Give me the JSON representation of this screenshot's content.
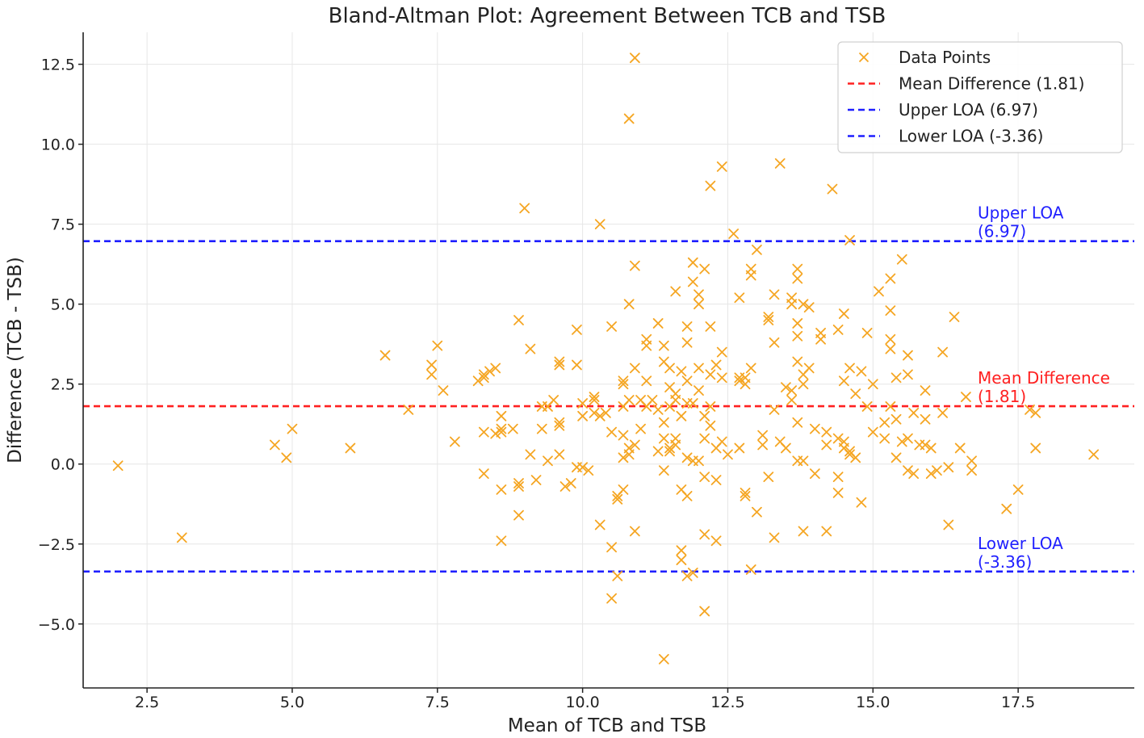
{
  "chart_data": {
    "type": "scatter",
    "title": "Bland-Altman Plot: Agreement Between TCB and TSB",
    "xlabel": "Mean of TCB and TSB",
    "ylabel": "Difference (TCB - TSB)",
    "xlim": [
      1.4,
      19.5
    ],
    "ylim": [
      -7.0,
      13.5
    ],
    "xticks": [
      2.5,
      5.0,
      7.5,
      10.0,
      12.5,
      15.0,
      17.5
    ],
    "xtick_labels": [
      "2.5",
      "5.0",
      "7.5",
      "10.0",
      "12.5",
      "15.0",
      "17.5"
    ],
    "yticks": [
      -5.0,
      -2.5,
      0.0,
      2.5,
      5.0,
      7.5,
      10.0,
      12.5
    ],
    "ytick_labels": [
      "−5.0",
      "−2.5",
      "0.0",
      "2.5",
      "5.0",
      "7.5",
      "10.0",
      "12.5"
    ],
    "grid": true,
    "legend_position": "top-right",
    "colors": {
      "points": "#f5a623",
      "mean": "#ff2020",
      "loa": "#1f1fff",
      "axis": "#222222",
      "grid": "#e6e6e6"
    },
    "series": [
      {
        "name": "Data Points",
        "marker": "x",
        "points": [
          [
            2.0,
            -0.05
          ],
          [
            3.1,
            -2.3
          ],
          [
            4.7,
            0.6
          ],
          [
            4.9,
            0.2
          ],
          [
            5.0,
            1.1
          ],
          [
            6.0,
            0.5
          ],
          [
            6.6,
            3.4
          ],
          [
            7.0,
            1.7
          ],
          [
            7.4,
            2.8
          ],
          [
            7.4,
            3.1
          ],
          [
            7.5,
            3.7
          ],
          [
            7.6,
            2.3
          ],
          [
            7.8,
            0.7
          ],
          [
            8.2,
            2.6
          ],
          [
            8.3,
            2.8
          ],
          [
            8.3,
            2.7
          ],
          [
            8.4,
            2.9
          ],
          [
            8.5,
            3.0
          ],
          [
            8.3,
            1.0
          ],
          [
            8.3,
            -0.3
          ],
          [
            8.5,
            0.95
          ],
          [
            8.6,
            1.0
          ],
          [
            8.6,
            1.1
          ],
          [
            8.6,
            1.5
          ],
          [
            8.6,
            -0.8
          ],
          [
            8.6,
            -2.4
          ],
          [
            8.8,
            1.1
          ],
          [
            8.9,
            4.5
          ],
          [
            8.9,
            -0.7
          ],
          [
            8.9,
            -0.6
          ],
          [
            8.9,
            -1.6
          ],
          [
            9.0,
            8.0
          ],
          [
            9.1,
            3.6
          ],
          [
            9.1,
            0.3
          ],
          [
            9.2,
            -0.5
          ],
          [
            9.3,
            1.1
          ],
          [
            9.3,
            1.8
          ],
          [
            9.4,
            0.1
          ],
          [
            9.4,
            1.8
          ],
          [
            9.5,
            2.0
          ],
          [
            9.6,
            3.1
          ],
          [
            9.6,
            3.2
          ],
          [
            9.6,
            1.2
          ],
          [
            9.6,
            1.3
          ],
          [
            9.6,
            0.3
          ],
          [
            9.7,
            -0.7
          ],
          [
            9.8,
            -0.6
          ],
          [
            9.9,
            4.2
          ],
          [
            9.9,
            3.1
          ],
          [
            9.9,
            -0.1
          ],
          [
            10.0,
            1.5
          ],
          [
            10.0,
            1.9
          ],
          [
            10.0,
            -0.1
          ],
          [
            10.1,
            -0.2
          ],
          [
            10.2,
            2.0
          ],
          [
            10.2,
            2.1
          ],
          [
            10.2,
            1.6
          ],
          [
            10.3,
            7.5
          ],
          [
            10.3,
            1.5
          ],
          [
            10.3,
            -1.9
          ],
          [
            10.4,
            1.6
          ],
          [
            10.5,
            4.3
          ],
          [
            10.5,
            1.0
          ],
          [
            10.5,
            -2.6
          ],
          [
            10.5,
            -4.2
          ],
          [
            10.6,
            -1.1
          ],
          [
            10.6,
            -1.0
          ],
          [
            10.6,
            -3.5
          ],
          [
            10.7,
            2.6
          ],
          [
            10.7,
            2.5
          ],
          [
            10.7,
            1.8
          ],
          [
            10.7,
            0.9
          ],
          [
            10.7,
            0.2
          ],
          [
            10.7,
            -0.8
          ],
          [
            10.8,
            10.8
          ],
          [
            10.8,
            2.0
          ],
          [
            10.8,
            0.5
          ],
          [
            10.8,
            5.0
          ],
          [
            10.8,
            0.3
          ],
          [
            10.9,
            12.7
          ],
          [
            10.9,
            6.2
          ],
          [
            10.9,
            3.0
          ],
          [
            10.9,
            0.6
          ],
          [
            10.9,
            -2.1
          ],
          [
            11.0,
            2.0
          ],
          [
            11.0,
            1.1
          ],
          [
            11.1,
            3.9
          ],
          [
            11.1,
            3.7
          ],
          [
            11.1,
            2.6
          ],
          [
            11.1,
            1.8
          ],
          [
            11.2,
            2.0
          ],
          [
            11.3,
            4.4
          ],
          [
            11.3,
            1.7
          ],
          [
            11.3,
            0.4
          ],
          [
            11.4,
            3.7
          ],
          [
            11.4,
            3.2
          ],
          [
            11.4,
            1.3
          ],
          [
            11.4,
            0.8
          ],
          [
            11.4,
            -0.2
          ],
          [
            11.4,
            -6.1
          ],
          [
            11.5,
            2.4
          ],
          [
            11.5,
            3.0
          ],
          [
            11.5,
            0.5
          ],
          [
            11.5,
            0.4
          ],
          [
            11.5,
            1.8
          ],
          [
            11.6,
            5.4
          ],
          [
            11.6,
            2.2
          ],
          [
            11.6,
            2.0
          ],
          [
            11.6,
            0.8
          ],
          [
            11.6,
            0.6
          ],
          [
            11.7,
            2.9
          ],
          [
            11.7,
            1.5
          ],
          [
            11.7,
            -0.8
          ],
          [
            11.7,
            -2.7
          ],
          [
            11.7,
            -3.0
          ],
          [
            11.8,
            4.3
          ],
          [
            11.8,
            3.8
          ],
          [
            11.8,
            2.6
          ],
          [
            11.8,
            1.9
          ],
          [
            11.8,
            0.2
          ],
          [
            11.8,
            -1.0
          ],
          [
            11.8,
            -3.5
          ],
          [
            11.9,
            6.3
          ],
          [
            11.9,
            5.7
          ],
          [
            11.9,
            1.9
          ],
          [
            11.9,
            0.1
          ],
          [
            11.9,
            -3.4
          ],
          [
            12.0,
            5.3
          ],
          [
            12.0,
            5.0
          ],
          [
            12.0,
            3.0
          ],
          [
            12.0,
            2.3
          ],
          [
            12.0,
            0.1
          ],
          [
            12.1,
            6.1
          ],
          [
            12.1,
            1.5
          ],
          [
            12.1,
            0.8
          ],
          [
            12.1,
            -0.4
          ],
          [
            12.1,
            -2.2
          ],
          [
            12.1,
            -4.6
          ],
          [
            12.2,
            8.7
          ],
          [
            12.2,
            4.3
          ],
          [
            12.2,
            2.8
          ],
          [
            12.2,
            1.8
          ],
          [
            12.2,
            1.2
          ],
          [
            12.3,
            3.1
          ],
          [
            12.3,
            0.5
          ],
          [
            12.3,
            -0.5
          ],
          [
            12.3,
            -2.4
          ],
          [
            12.4,
            9.3
          ],
          [
            12.4,
            3.5
          ],
          [
            12.4,
            2.7
          ],
          [
            12.4,
            0.7
          ],
          [
            12.5,
            0.3
          ],
          [
            12.6,
            7.2
          ],
          [
            12.7,
            5.2
          ],
          [
            12.7,
            2.7
          ],
          [
            12.7,
            2.6
          ],
          [
            12.7,
            0.5
          ],
          [
            12.8,
            2.7
          ],
          [
            12.8,
            2.5
          ],
          [
            12.8,
            -0.9
          ],
          [
            12.8,
            -1.0
          ],
          [
            12.9,
            6.1
          ],
          [
            12.9,
            5.9
          ],
          [
            12.9,
            3.0
          ],
          [
            12.9,
            -3.3
          ],
          [
            13.0,
            6.7
          ],
          [
            13.0,
            -1.5
          ],
          [
            13.1,
            0.6
          ],
          [
            13.1,
            0.9
          ],
          [
            13.2,
            4.5
          ],
          [
            13.2,
            4.6
          ],
          [
            13.2,
            -0.4
          ],
          [
            13.3,
            3.8
          ],
          [
            13.3,
            5.3
          ],
          [
            13.3,
            1.7
          ],
          [
            13.3,
            -2.3
          ],
          [
            13.4,
            9.4
          ],
          [
            13.4,
            0.7
          ],
          [
            13.5,
            0.5
          ],
          [
            13.5,
            2.4
          ],
          [
            13.6,
            5.0
          ],
          [
            13.6,
            5.2
          ],
          [
            13.6,
            2.3
          ],
          [
            13.6,
            2.0
          ],
          [
            13.7,
            6.1
          ],
          [
            13.7,
            5.8
          ],
          [
            13.7,
            4.4
          ],
          [
            13.7,
            4.0
          ],
          [
            13.7,
            3.2
          ],
          [
            13.7,
            1.3
          ],
          [
            13.7,
            0.1
          ],
          [
            13.8,
            5.0
          ],
          [
            13.8,
            2.8
          ],
          [
            13.8,
            2.5
          ],
          [
            13.8,
            0.1
          ],
          [
            13.8,
            -2.1
          ],
          [
            13.9,
            3.0
          ],
          [
            13.9,
            4.9
          ],
          [
            14.0,
            1.1
          ],
          [
            14.0,
            -0.3
          ],
          [
            14.1,
            4.1
          ],
          [
            14.1,
            3.9
          ],
          [
            14.2,
            1.0
          ],
          [
            14.2,
            -2.1
          ],
          [
            14.2,
            0.6
          ],
          [
            14.3,
            8.6
          ],
          [
            14.4,
            4.2
          ],
          [
            14.4,
            0.8
          ],
          [
            14.4,
            -0.4
          ],
          [
            14.4,
            -0.9
          ],
          [
            14.5,
            0.7
          ],
          [
            14.5,
            0.5
          ],
          [
            14.5,
            2.6
          ],
          [
            14.5,
            4.7
          ],
          [
            14.6,
            7.0
          ],
          [
            14.6,
            3.0
          ],
          [
            14.6,
            0.4
          ],
          [
            14.6,
            0.3
          ],
          [
            14.7,
            2.2
          ],
          [
            14.7,
            0.2
          ],
          [
            14.8,
            2.9
          ],
          [
            14.8,
            -1.2
          ],
          [
            14.9,
            4.1
          ],
          [
            14.9,
            1.8
          ],
          [
            15.0,
            1.0
          ],
          [
            15.0,
            2.5
          ],
          [
            15.1,
            5.4
          ],
          [
            15.2,
            0.8
          ],
          [
            15.2,
            1.3
          ],
          [
            15.3,
            5.8
          ],
          [
            15.3,
            4.8
          ],
          [
            15.3,
            3.9
          ],
          [
            15.3,
            3.6
          ],
          [
            15.3,
            1.8
          ],
          [
            15.4,
            2.7
          ],
          [
            15.4,
            1.4
          ],
          [
            15.4,
            0.2
          ],
          [
            15.5,
            6.4
          ],
          [
            15.5,
            0.7
          ],
          [
            15.6,
            3.4
          ],
          [
            15.6,
            2.8
          ],
          [
            15.6,
            0.8
          ],
          [
            15.6,
            -0.2
          ],
          [
            15.7,
            1.6
          ],
          [
            15.7,
            -0.3
          ],
          [
            15.8,
            0.6
          ],
          [
            15.9,
            2.3
          ],
          [
            15.9,
            1.4
          ],
          [
            15.9,
            0.6
          ],
          [
            16.0,
            0.5
          ],
          [
            16.0,
            -0.3
          ],
          [
            16.1,
            -0.2
          ],
          [
            16.2,
            3.5
          ],
          [
            16.2,
            1.6
          ],
          [
            16.3,
            -1.9
          ],
          [
            16.3,
            -0.1
          ],
          [
            16.4,
            4.6
          ],
          [
            16.5,
            0.5
          ],
          [
            16.6,
            2.1
          ],
          [
            16.7,
            -0.2
          ],
          [
            16.7,
            0.1
          ],
          [
            17.3,
            -1.4
          ],
          [
            17.5,
            -0.8
          ],
          [
            17.7,
            1.7
          ],
          [
            17.8,
            1.6
          ],
          [
            17.8,
            0.5
          ],
          [
            18.8,
            0.3
          ]
        ]
      }
    ],
    "reference_lines": [
      {
        "name": "Mean Difference (1.81)",
        "y": 1.81,
        "color": "#ff2020",
        "label_line1": "Mean Difference",
        "label_line2": "(1.81)"
      },
      {
        "name": "Upper LOA (6.97)",
        "y": 6.97,
        "color": "#1f1fff",
        "label_line1": "Upper LOA",
        "label_line2": "(6.97)"
      },
      {
        "name": "Lower LOA (-3.36)",
        "y": -3.36,
        "color": "#1f1fff",
        "label_line1": "Lower LOA",
        "label_line2": "(-3.36)"
      }
    ],
    "legend": [
      {
        "label": "Data Points",
        "kind": "marker",
        "color": "#f5a623"
      },
      {
        "label": "Mean Difference (1.81)",
        "kind": "dashed",
        "color": "#ff2020"
      },
      {
        "label": "Upper LOA (6.97)",
        "kind": "dashed",
        "color": "#1f1fff"
      },
      {
        "label": "Lower LOA (-3.36)",
        "kind": "dashed",
        "color": "#1f1fff"
      }
    ]
  }
}
